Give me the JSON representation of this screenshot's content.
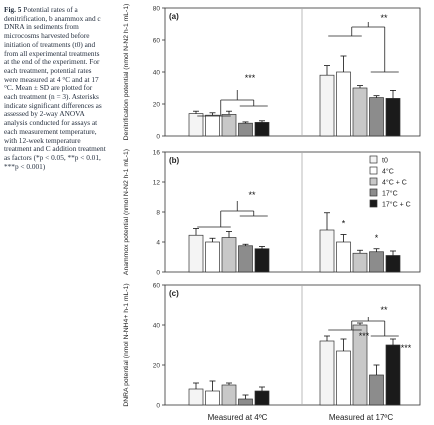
{
  "caption": {
    "label": "Fig. 5",
    "text": "Potential rates of a denitrification, b anammox and c DNRA in sediments from microcosms harvested before initiation of treatments (t0) and from all experimental treatments at the end of the experiment. For each treatment, potential rates were measured at 4 °C and at 17 °C. Mean ± SD are plotted for each treatment (n = 3). Asterisks indicate significant differences as assessed by 2-way ANOVA analysis conducted for assays at each measurement temperature, with 12-week temperature treatment and C addition treatment as factors (*p < 0.05, **p < 0.01, ***p < 0.001)"
  },
  "legend": {
    "placement": "right of panel b",
    "entries": [
      {
        "label": "t0",
        "color": "#f4f4f4"
      },
      {
        "label": "4°C",
        "color": "#ffffff"
      },
      {
        "label": "4°C + C",
        "color": "#c8c8c8"
      },
      {
        "label": "17°C",
        "color": "#8c8c8c"
      },
      {
        "label": "17°C + C",
        "color": "#1a1a1a"
      }
    ]
  },
  "chart_data": [
    {
      "type": "bar",
      "panel": "(a)",
      "ylabel": "Denitrification potential (nmol N-N2 h-1 mL-1)",
      "ylim": [
        0,
        80
      ],
      "yticks": [
        "0",
        "20",
        "40",
        "60",
        "80"
      ],
      "categories": [
        "Measured at 4ºC",
        "Measured at 17ºC"
      ],
      "series": [
        {
          "name": "t0",
          "values": [
            14,
            38
          ],
          "errors": [
            1.5,
            6
          ]
        },
        {
          "name": "4°C",
          "values": [
            13,
            40
          ],
          "errors": [
            1.5,
            10
          ]
        },
        {
          "name": "4°C + C",
          "values": [
            13.5,
            30
          ],
          "errors": [
            2,
            1.5
          ]
        },
        {
          "name": "17°C",
          "values": [
            8,
            24
          ],
          "errors": [
            0.8,
            1.2
          ]
        },
        {
          "name": "17°C + C",
          "values": [
            8.5,
            23.5
          ],
          "errors": [
            1,
            5
          ]
        }
      ],
      "significance": [
        "***",
        "**"
      ]
    },
    {
      "type": "bar",
      "panel": "(b)",
      "ylabel": "Anammox potential (nmol N-N2 h-1 mL-1)",
      "ylim": [
        0,
        16
      ],
      "yticks": [
        "0",
        "4",
        "8",
        "12",
        "16"
      ],
      "categories": [
        "Measured at 4ºC",
        "Measured at 17ºC"
      ],
      "series": [
        {
          "name": "t0",
          "values": [
            4.9,
            5.6
          ],
          "errors": [
            0.9,
            2.3
          ]
        },
        {
          "name": "4°C",
          "values": [
            4.0,
            4.0
          ],
          "errors": [
            0.5,
            1.0
          ]
        },
        {
          "name": "4°C + C",
          "values": [
            4.6,
            2.5
          ],
          "errors": [
            0.8,
            0.4
          ]
        },
        {
          "name": "17°C",
          "values": [
            3.5,
            2.7
          ],
          "errors": [
            0.2,
            0.4
          ]
        },
        {
          "name": "17°C + C",
          "values": [
            3.1,
            2.2
          ],
          "errors": [
            0.3,
            0.6
          ]
        }
      ],
      "significance": [
        "**",
        "*",
        "*"
      ]
    },
    {
      "type": "bar",
      "panel": "(c)",
      "ylabel": "DNRA potential (nmol N-NH4+ h-1 mL-1)",
      "ylim": [
        0,
        60
      ],
      "yticks": [
        "0",
        "20",
        "40",
        "60"
      ],
      "categories": [
        "Measured at 4ºC",
        "Measured at 17ºC"
      ],
      "series": [
        {
          "name": "t0",
          "values": [
            8,
            32
          ],
          "errors": [
            3,
            2.5
          ]
        },
        {
          "name": "4°C",
          "values": [
            7,
            27
          ],
          "errors": [
            5,
            6
          ]
        },
        {
          "name": "4°C + C",
          "values": [
            10,
            40
          ],
          "errors": [
            1,
            1
          ]
        },
        {
          "name": "17°C",
          "values": [
            3,
            15
          ],
          "errors": [
            2,
            5
          ]
        },
        {
          "name": "17°C + C",
          "values": [
            7,
            30
          ],
          "errors": [
            2,
            3
          ]
        }
      ],
      "significance": [
        "**",
        "***",
        "***"
      ]
    }
  ]
}
